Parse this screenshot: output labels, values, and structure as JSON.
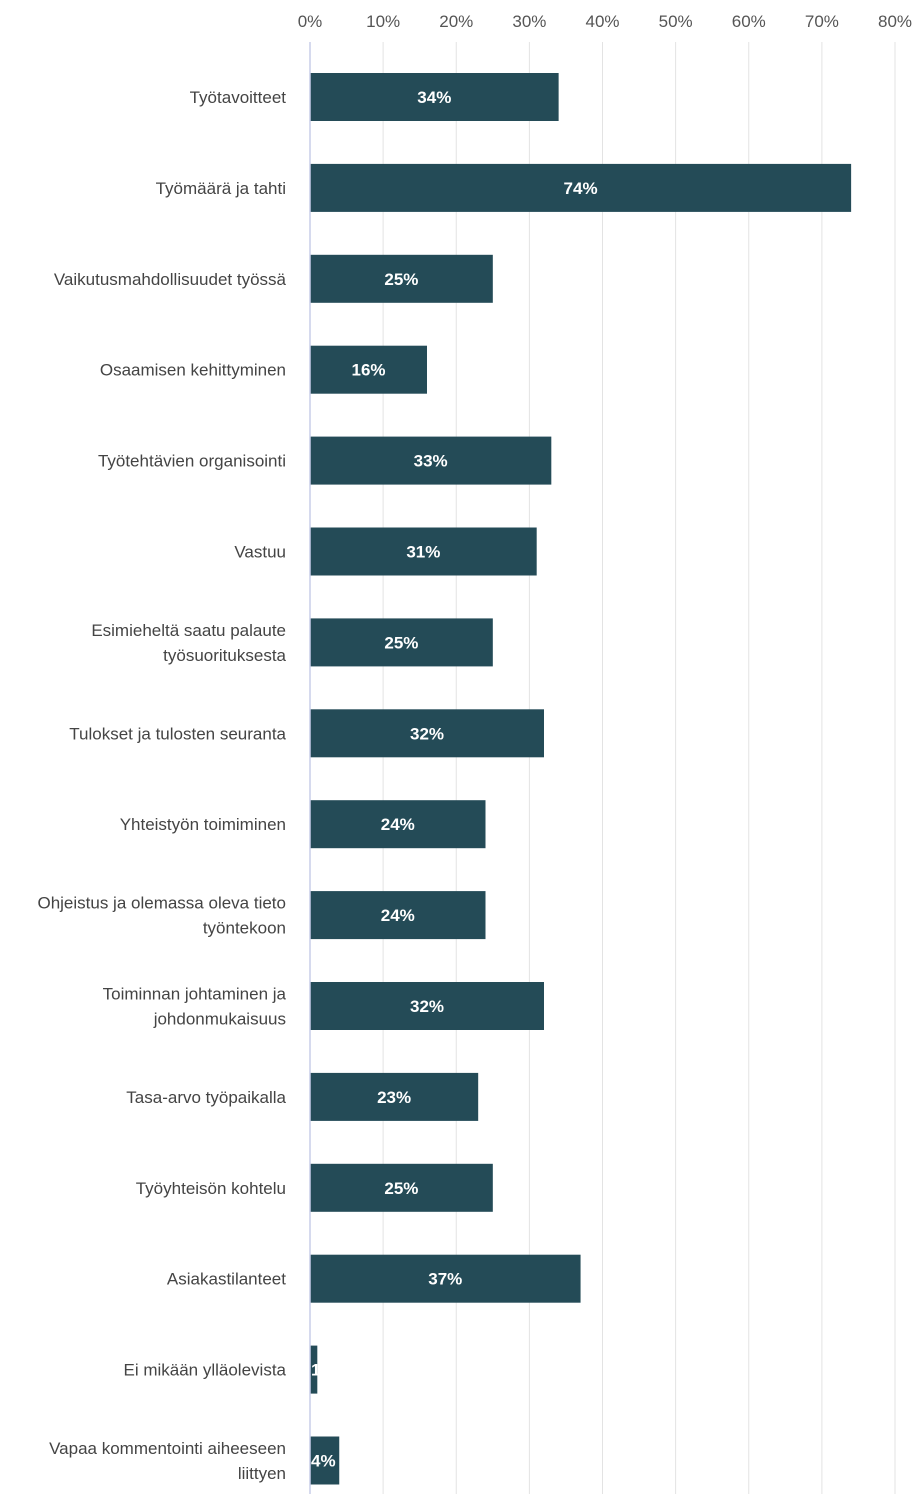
{
  "chart_data": {
    "type": "bar",
    "orientation": "horizontal",
    "title": "",
    "xlabel": "",
    "ylabel": "",
    "xlim": [
      0,
      80
    ],
    "ticks": [
      "0%",
      "10%",
      "20%",
      "30%",
      "40%",
      "50%",
      "60%",
      "70%",
      "80%"
    ],
    "tick_values": [
      0,
      10,
      20,
      30,
      40,
      50,
      60,
      70,
      80
    ],
    "grid": true,
    "legend": "none",
    "bar_color": "#244b57",
    "categories": [
      [
        "Työtavoitteet"
      ],
      [
        "Työmäärä ja tahti"
      ],
      [
        "Vaikutusmahdollisuudet työssä"
      ],
      [
        "Osaamisen kehittyminen"
      ],
      [
        "Työtehtävien organisointi"
      ],
      [
        "Vastuu"
      ],
      [
        "Esimieheltä saatu palaute",
        "työsuorituksesta"
      ],
      [
        "Tulokset ja tulosten seuranta"
      ],
      [
        "Yhteistyön toimiminen"
      ],
      [
        "Ohjeistus ja olemassa oleva tieto",
        "työntekoon"
      ],
      [
        "Toiminnan johtaminen ja",
        "johdonmukaisuus"
      ],
      [
        "Tasa-arvo työpaikalla"
      ],
      [
        "Työyhteisön kohtelu"
      ],
      [
        "Asiakastilanteet"
      ],
      [
        "Ei mikään ylläolevista"
      ],
      [
        "Vapaa kommentointi aiheeseen",
        "liittyen"
      ]
    ],
    "values": [
      34,
      74,
      25,
      16,
      33,
      31,
      25,
      32,
      24,
      24,
      32,
      23,
      25,
      37,
      1,
      4
    ],
    "data_labels": [
      "34%",
      "74%",
      "25%",
      "16%",
      "33%",
      "31%",
      "25%",
      "32%",
      "24%",
      "24%",
      "32%",
      "23%",
      "25%",
      "37%",
      "1",
      "4%"
    ]
  }
}
